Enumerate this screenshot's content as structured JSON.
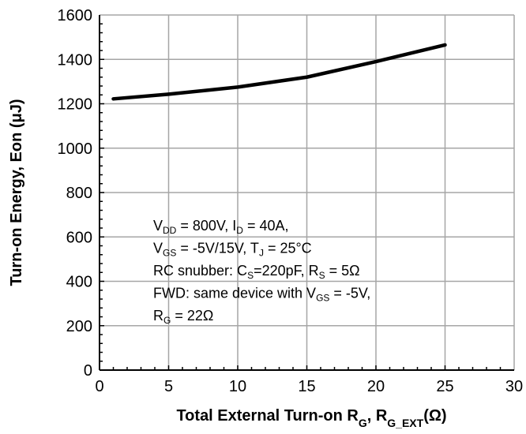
{
  "chart_data": {
    "type": "line",
    "title": "",
    "xlabel": {
      "main": "Total External Turn-on R",
      "sub1": "G",
      "sep": ", R",
      "sub2": "G_EXT",
      "unit": "(Ω)"
    },
    "ylabel": "Turn-on Energy, Eon (μJ)",
    "xlim": [
      0,
      30
    ],
    "ylim": [
      0,
      1600
    ],
    "xticks": [
      "0",
      "5",
      "10",
      "15",
      "20",
      "25",
      "30"
    ],
    "yticks": [
      "0",
      "200",
      "400",
      "600",
      "800",
      "1000",
      "1200",
      "1400",
      "1600"
    ],
    "grid": true,
    "series": [
      {
        "x": [
          1,
          5,
          10,
          15,
          20,
          25
        ],
        "y": [
          1222,
          1243,
          1275,
          1320,
          1390,
          1465
        ]
      }
    ],
    "annotations": [
      [
        {
          "t": "V"
        },
        {
          "t": "DD",
          "sub": true
        },
        {
          "t": " = 800V, I"
        },
        {
          "t": "D",
          "sub": true
        },
        {
          "t": " = 40A,"
        }
      ],
      [
        {
          "t": "V"
        },
        {
          "t": "GS",
          "sub": true
        },
        {
          "t": " = -5V/15V, T"
        },
        {
          "t": "J",
          "sub": true
        },
        {
          "t": " = 25°C"
        }
      ],
      [
        {
          "t": "RC snubber: C"
        },
        {
          "t": "S",
          "sub": true
        },
        {
          "t": "=220pF, R"
        },
        {
          "t": "S",
          "sub": true
        },
        {
          "t": " = 5Ω"
        }
      ],
      [
        {
          "t": "FWD: same device with V"
        },
        {
          "t": "GS",
          "sub": true
        },
        {
          "t": " = -5V,"
        }
      ],
      [
        {
          "t": "R"
        },
        {
          "t": "G",
          "sub": true
        },
        {
          "t": " = 22Ω"
        }
      ]
    ]
  }
}
